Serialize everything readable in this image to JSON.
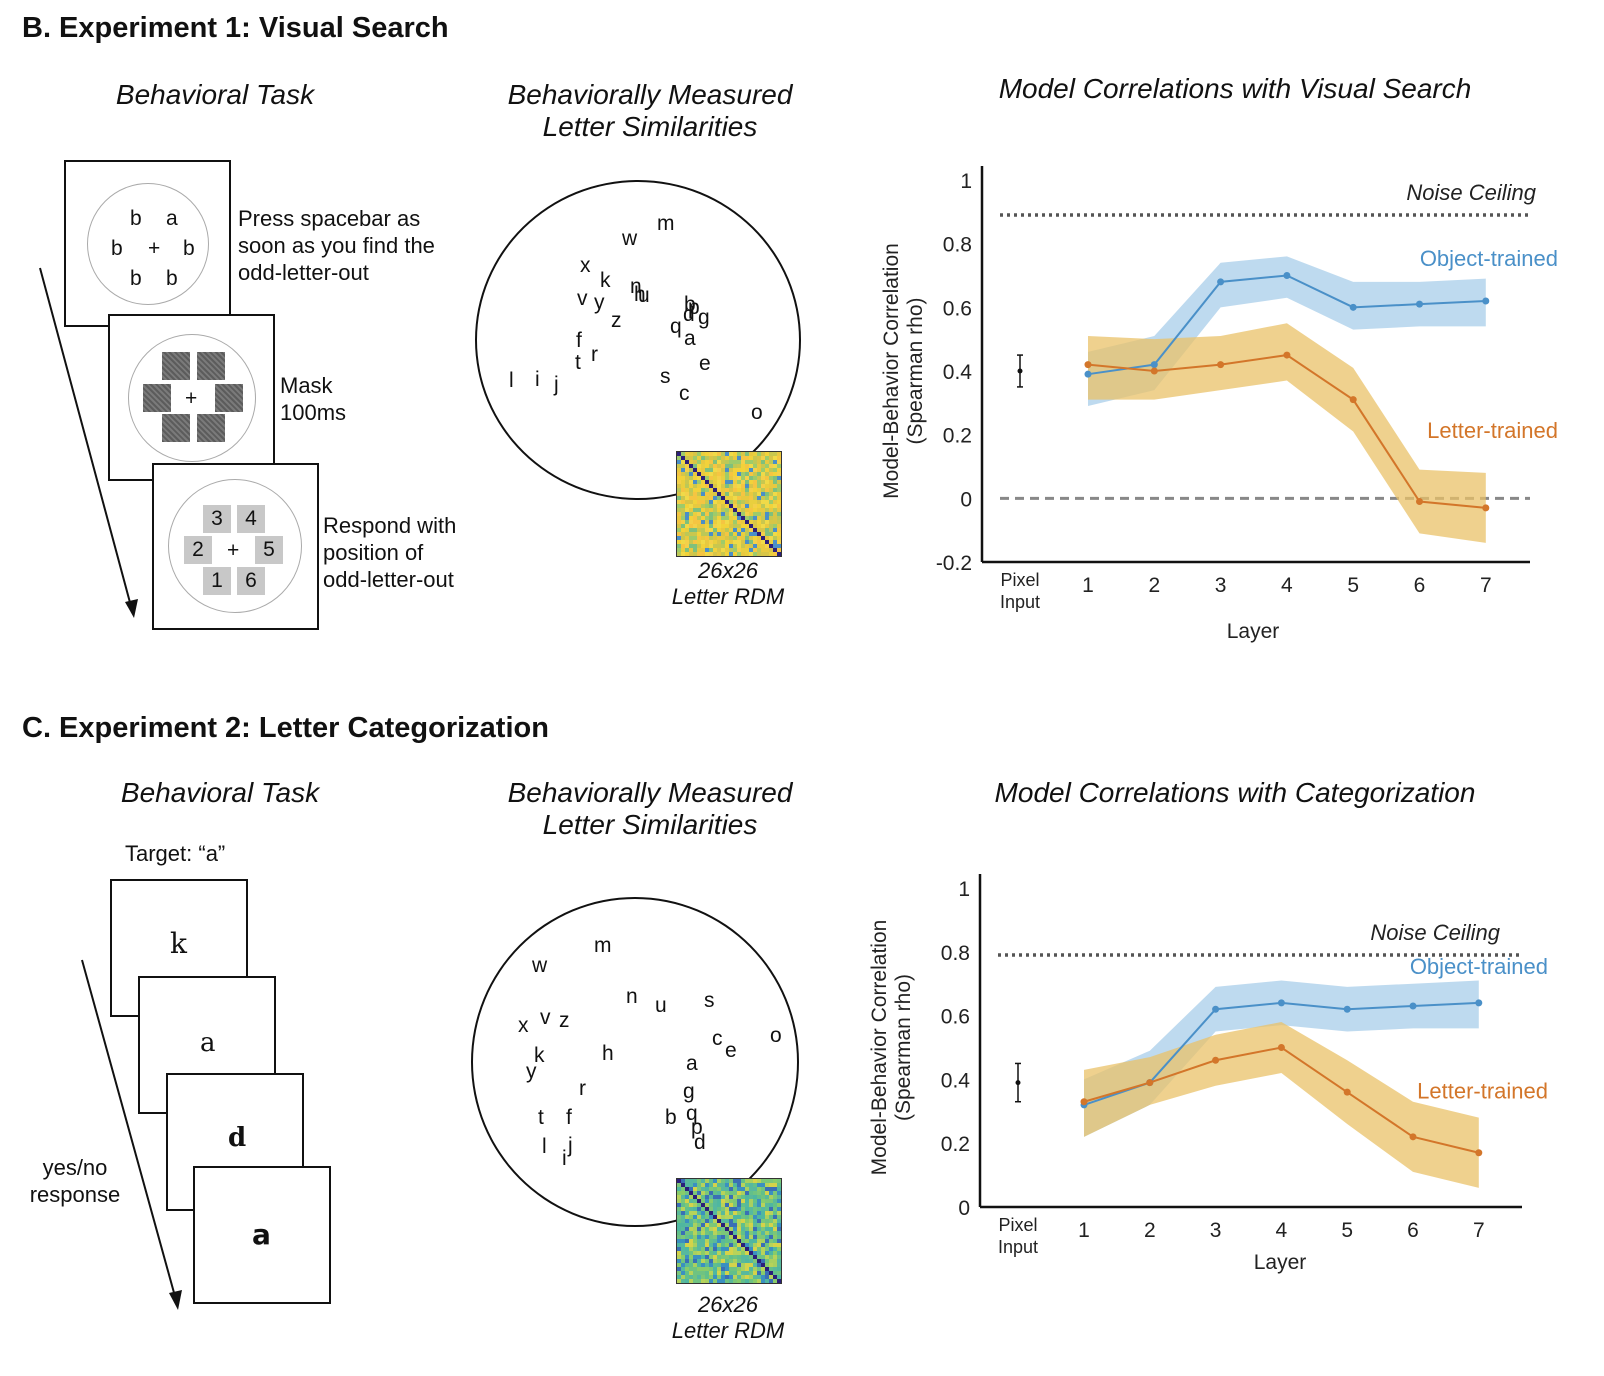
{
  "sectionB": {
    "title": "B. Experiment 1: Visual Search",
    "task_title": "Behavioral Task",
    "sim_title_1": "Behaviorally Measured",
    "sim_title_2": "Letter Similarities",
    "frame1_glyphs": [
      "b",
      "a",
      "b",
      "+",
      "b",
      "b",
      "b"
    ],
    "frame1_text": "Press spacebar as\nsoon as you find the\nodd-letter-out",
    "frame2_glyph": "+",
    "frame2_text": "Mask\n100ms",
    "frame3_numbers": [
      "3",
      "4",
      "2",
      "5",
      "1",
      "6"
    ],
    "frame3_plus": "+",
    "frame3_text": "Respond with\nposition of\nodd-letter-out",
    "letters": [
      "w",
      "m",
      "x",
      "k",
      "n",
      "u",
      "v",
      "y",
      "z",
      "b",
      "d",
      "g",
      "p",
      "q",
      "f",
      "a",
      "t",
      "r",
      "e",
      "l",
      "i",
      "j",
      "s",
      "c",
      "o",
      "h"
    ],
    "rdm_caption": "26x26\nLetter RDM"
  },
  "sectionC": {
    "title": "C. Experiment 2: Letter Categorization",
    "task_title": "Behavioral Task",
    "sim_title_1": "Behaviorally Measured",
    "sim_title_2": "Letter Similarities",
    "target_label": "Target: “a”",
    "frame_letters": [
      "k",
      "a",
      "d",
      "a"
    ],
    "response_text": "yes/no\nresponse",
    "letters": [
      "m",
      "w",
      "n",
      "u",
      "s",
      "x",
      "v",
      "z",
      "c",
      "e",
      "o",
      "k",
      "h",
      "y",
      "a",
      "r",
      "g",
      "t",
      "f",
      "b",
      "q",
      "p",
      "l",
      "i",
      "j",
      "d"
    ],
    "rdm_caption": "26x26\nLetter RDM"
  },
  "chart_data": [
    {
      "type": "line",
      "title": "Model Correlations with Visual Search",
      "xlabel": "Layer",
      "ylabel_1": "Model-Behavior Correlation",
      "ylabel_2": "(Spearman rho)",
      "categories": [
        "1",
        "2",
        "3",
        "4",
        "5",
        "6",
        "7"
      ],
      "pixel_label_1": "Pixel",
      "pixel_label_2": "Input",
      "ylim": [
        -0.2,
        1
      ],
      "yticks": [
        "-0.2",
        "0",
        "0.2",
        "0.4",
        "0.6",
        "0.8",
        "1"
      ],
      "ytick_values": [
        -0.2,
        0,
        0.2,
        0.4,
        0.6,
        0.8,
        1
      ],
      "noise_ceiling": 0.89,
      "noise_ceiling_label": "Noise Ceiling",
      "zero_line": 0,
      "pixel_input": {
        "value": 0.4,
        "low": 0.35,
        "high": 0.45
      },
      "series": [
        {
          "name": "Object-trained",
          "color": "#4a90c8",
          "band": "#a8cdea",
          "values": [
            0.39,
            0.42,
            0.68,
            0.7,
            0.6,
            0.61,
            0.62
          ],
          "lower": [
            0.29,
            0.34,
            0.6,
            0.63,
            0.53,
            0.54,
            0.54
          ],
          "upper": [
            0.46,
            0.51,
            0.74,
            0.76,
            0.68,
            0.68,
            0.69
          ]
        },
        {
          "name": "Letter-trained",
          "color": "#d3762a",
          "band": "#eac168",
          "values": [
            0.42,
            0.4,
            0.42,
            0.45,
            0.31,
            -0.01,
            -0.03
          ],
          "lower": [
            0.31,
            0.31,
            0.34,
            0.37,
            0.21,
            -0.11,
            -0.14
          ],
          "upper": [
            0.51,
            0.5,
            0.51,
            0.55,
            0.41,
            0.09,
            0.08
          ]
        }
      ]
    },
    {
      "type": "line",
      "title": "Model Correlations with Categorization",
      "xlabel": "Layer",
      "ylabel_1": "Model-Behavior Correlation",
      "ylabel_2": "(Spearman rho)",
      "categories": [
        "1",
        "2",
        "3",
        "4",
        "5",
        "6",
        "7"
      ],
      "pixel_label_1": "Pixel",
      "pixel_label_2": "Input",
      "ylim": [
        0,
        1
      ],
      "yticks": [
        "0",
        "0.2",
        "0.4",
        "0.6",
        "0.8",
        "1"
      ],
      "ytick_values": [
        0,
        0.2,
        0.4,
        0.6,
        0.8,
        1
      ],
      "noise_ceiling": 0.79,
      "noise_ceiling_label": "Noise Ceiling",
      "pixel_input": {
        "value": 0.39,
        "low": 0.33,
        "high": 0.45
      },
      "series": [
        {
          "name": "Object-trained",
          "color": "#4a90c8",
          "band": "#a8cdea",
          "values": [
            0.32,
            0.39,
            0.62,
            0.64,
            0.62,
            0.63,
            0.64
          ],
          "lower": [
            0.22,
            0.32,
            0.55,
            0.57,
            0.55,
            0.56,
            0.56
          ],
          "upper": [
            0.4,
            0.49,
            0.69,
            0.71,
            0.69,
            0.7,
            0.71
          ]
        },
        {
          "name": "Letter-trained",
          "color": "#d3762a",
          "band": "#eac168",
          "values": [
            0.33,
            0.39,
            0.46,
            0.5,
            0.36,
            0.22,
            0.17
          ],
          "lower": [
            0.22,
            0.32,
            0.38,
            0.42,
            0.26,
            0.11,
            0.06
          ],
          "upper": [
            0.43,
            0.47,
            0.54,
            0.58,
            0.46,
            0.33,
            0.28
          ]
        }
      ]
    }
  ]
}
